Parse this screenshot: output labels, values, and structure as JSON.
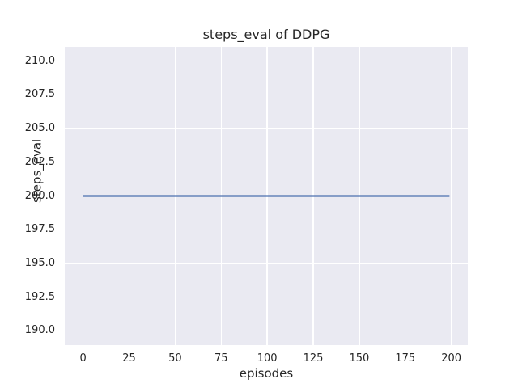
{
  "chart_data": {
    "type": "line",
    "title": "steps_eval of DDPG",
    "xlabel": "episodes",
    "ylabel": "steps_eval",
    "xlim": [
      -9.95,
      208.95
    ],
    "ylim": [
      188.95,
      211.05
    ],
    "grid": true,
    "legend": null,
    "xticks": [
      {
        "value": 0,
        "label": "0"
      },
      {
        "value": 25,
        "label": "25"
      },
      {
        "value": 50,
        "label": "50"
      },
      {
        "value": 75,
        "label": "75"
      },
      {
        "value": 100,
        "label": "100"
      },
      {
        "value": 125,
        "label": "125"
      },
      {
        "value": 150,
        "label": "150"
      },
      {
        "value": 175,
        "label": "175"
      },
      {
        "value": 200,
        "label": "200"
      }
    ],
    "yticks": [
      {
        "value": 190.0,
        "label": "190.0"
      },
      {
        "value": 192.5,
        "label": "192.5"
      },
      {
        "value": 195.0,
        "label": "195.0"
      },
      {
        "value": 197.5,
        "label": "197.5"
      },
      {
        "value": 200.0,
        "label": "200.0"
      },
      {
        "value": 202.5,
        "label": "202.5"
      },
      {
        "value": 205.0,
        "label": "205.0"
      },
      {
        "value": 207.5,
        "label": "207.5"
      },
      {
        "value": 210.0,
        "label": "210.0"
      }
    ],
    "series": [
      {
        "name": "steps_eval",
        "x": [
          0,
          199
        ],
        "y": [
          200,
          200
        ],
        "color": "#4C72B0",
        "linewidth": 2.2
      }
    ],
    "style": {
      "figure_bg": "#FFFFFF",
      "plot_bg": "#EAEAF2",
      "grid_color": "#FFFFFF",
      "text_color": "#262626"
    }
  }
}
